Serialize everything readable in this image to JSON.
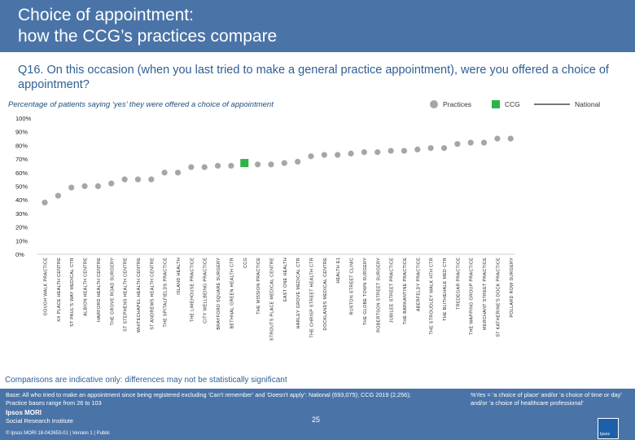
{
  "header": {
    "title": "Choice of appointment:\nhow the CCG’s practices compare"
  },
  "question": "Q16. On this occasion (when you last tried to make a general practice appointment), were you offered a choice of appointment?",
  "subtitle": "Percentage of patients saying ‘yes’ they were offered a choice of appointment",
  "legend": {
    "practices": "Practices",
    "ccg": "CCG",
    "national": "National"
  },
  "colors": {
    "practice_marker": "#a6a6a6",
    "ccg_marker": "#2bb44a",
    "header_bg": "#4a74a8",
    "question_text": "#2f5f95"
  },
  "chart_data": {
    "type": "scatter",
    "title": "Percentage of patients saying ‘yes’ they were offered a choice of appointment",
    "ylim": [
      0,
      100
    ],
    "y_ticks": [
      "0%",
      "10%",
      "20%",
      "30%",
      "40%",
      "50%",
      "60%",
      "70%",
      "80%",
      "90%",
      "100%"
    ],
    "categories": [
      "GOUGH WALK PRACTICE",
      "XX PLACE HEALTH CENTRE",
      "ST PAUL'S WAY MEDICAL CTR",
      "ALBION HEALTH CENTRE",
      "HARFORD HEALTH CENTRE",
      "THE GROVE ROAD SURGERY",
      "ST STEPHENS HEALTH CENTRE",
      "WHITECHAPEL HEALTH CENTRE",
      "ST ANDREWS HEALTH CENTRE",
      "THE SPITALFIELDS PRACTICE",
      "ISLAND HEALTH",
      "THE LIMEHOUSE PRACTICE",
      "CITY WELLBEING PRACTICE",
      "BRAYFORD SQUARE SURGERY",
      "BETHNAL GREEN HEALTH CTR",
      "CCG",
      "THE MISSION PRACTICE",
      "STROUTS PLACE MEDICAL CENTRE",
      "EAST ONE HEALTH",
      "HARLEY GROVE MEDICAL CTR",
      "THE CHRISP STREET HEALTH CTR",
      "DOCKLANDS MEDICAL CENTRE",
      "HEALTH E1",
      "RUSTON STREET CLINIC",
      "THE GLOBE TOWN SURGERY",
      "ROBERTSON STREET SURGERY",
      "JUBILEE STREET PRACTICE",
      "THE BARKANTINE PRACTICE",
      "ABERFELDY PRACTICE",
      "THE STROUDLEY WALK HTH CTR",
      "THE BLITHEHALE MED CTR",
      "TREDEGAR PRACTICE",
      "THE WAPPING GROUP PRACTICE",
      "MERCHANT STREET PRACTICE",
      "ST KATHERINE'S DOCK PRACTICE",
      "POLLARD ROW SURGERY"
    ],
    "values": [
      38,
      43,
      49,
      50,
      50,
      52,
      55,
      55,
      55,
      60,
      60,
      64,
      64,
      65,
      65,
      67,
      66,
      66,
      67,
      68,
      72,
      73,
      73,
      74,
      75,
      75,
      76,
      76,
      77,
      78,
      78,
      81,
      82,
      82,
      85,
      85
    ],
    "highlight_category": "CCG",
    "national": null
  },
  "note": "Comparisons are indicative only: differences may not be statistically significant",
  "footer": {
    "base": "Base: All who tried to make an appointment since being registered excluding ‘Can’t remember’ and ‘Doesn’t apply’: National (693,075); CCG 2019 (2,256); Practice bases range from 26 to 103",
    "yes_definition": "%Yes = ‘a choice of place’ and/or ‘a choice of time or day’ and/or ‘a choice of healthcare professional’",
    "logo_line1": "Ipsos MORI",
    "logo_line2": "Social Research Institute",
    "copyright": "© Ipsos MORI     18-042653-01 | Version 1 | Public",
    "page_number": "25",
    "ipsos_badge": "Ipsos"
  }
}
